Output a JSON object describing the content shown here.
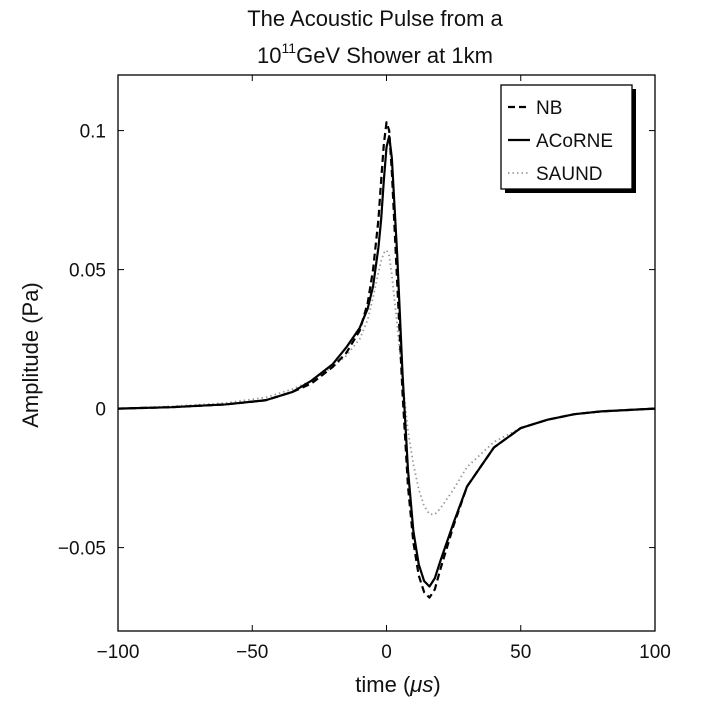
{
  "chart_data": {
    "type": "line",
    "title_line1": "The Acoustic Pulse from a",
    "title_line2_base": "10",
    "title_line2_exponent": "11",
    "title_line2_rest": "GeV Shower at 1km",
    "xlabel_prefix": "time (",
    "xlabel_unit": "μs",
    "xlabel_suffix": ")",
    "ylabel": "Amplitude (Pa)",
    "xlim": [
      -100,
      100
    ],
    "ylim": [
      -0.08,
      0.12
    ],
    "xticks": [
      -100,
      -50,
      0,
      50,
      100
    ],
    "xtick_labels": [
      "−100",
      "−50",
      "0",
      "50",
      "100"
    ],
    "yticks": [
      -0.05,
      0,
      0.05,
      0.1
    ],
    "ytick_labels": [
      "−0.05",
      "0",
      "0.05",
      "0.1"
    ],
    "grid": false,
    "legend_position": "top-right",
    "series": [
      {
        "name": "NB",
        "style": "dashed",
        "color": "#000000",
        "x": [
          -100,
          -80,
          -60,
          -45,
          -35,
          -28,
          -20,
          -15,
          -10,
          -7,
          -5,
          -3,
          -2,
          -1,
          0,
          1,
          2,
          4,
          6,
          8,
          10,
          12,
          14,
          16,
          18,
          20,
          25,
          30,
          40,
          50,
          60,
          70,
          80,
          90,
          100
        ],
        "y": [
          0,
          0.0005,
          0.0015,
          0.003,
          0.006,
          0.009,
          0.015,
          0.02,
          0.028,
          0.038,
          0.05,
          0.068,
          0.082,
          0.095,
          0.103,
          0.1,
          0.085,
          0.045,
          0.005,
          -0.028,
          -0.048,
          -0.06,
          -0.066,
          -0.068,
          -0.065,
          -0.058,
          -0.042,
          -0.028,
          -0.014,
          -0.007,
          -0.004,
          -0.002,
          -0.001,
          -0.0005,
          0
        ]
      },
      {
        "name": "ACoRNE",
        "style": "solid",
        "color": "#000000",
        "x": [
          -100,
          -80,
          -60,
          -45,
          -35,
          -28,
          -20,
          -15,
          -10,
          -7,
          -5,
          -3,
          -2,
          -1,
          0,
          1,
          2,
          4,
          6,
          8,
          10,
          12,
          14,
          16,
          18,
          20,
          25,
          30,
          40,
          50,
          60,
          70,
          80,
          90,
          100
        ],
        "y": [
          0,
          0.0005,
          0.0015,
          0.003,
          0.006,
          0.01,
          0.016,
          0.022,
          0.029,
          0.036,
          0.044,
          0.058,
          0.068,
          0.082,
          0.094,
          0.098,
          0.09,
          0.055,
          0.012,
          -0.022,
          -0.044,
          -0.056,
          -0.062,
          -0.064,
          -0.061,
          -0.055,
          -0.041,
          -0.028,
          -0.014,
          -0.007,
          -0.004,
          -0.002,
          -0.001,
          -0.0005,
          0
        ]
      },
      {
        "name": "SAUND",
        "style": "dotted",
        "color": "#9a9a9a",
        "x": [
          -100,
          -80,
          -60,
          -45,
          -35,
          -28,
          -20,
          -15,
          -10,
          -7,
          -5,
          -3,
          -2,
          -1,
          0,
          1,
          2,
          4,
          6,
          8,
          10,
          12,
          14,
          16,
          18,
          20,
          25,
          30,
          40,
          50,
          60,
          70,
          80,
          90,
          100
        ],
        "y": [
          0,
          0.0008,
          0.002,
          0.004,
          0.007,
          0.01,
          0.015,
          0.019,
          0.025,
          0.032,
          0.04,
          0.049,
          0.053,
          0.056,
          0.057,
          0.055,
          0.048,
          0.03,
          0.01,
          -0.008,
          -0.02,
          -0.029,
          -0.035,
          -0.038,
          -0.038,
          -0.036,
          -0.029,
          -0.021,
          -0.012,
          -0.007,
          -0.004,
          -0.002,
          -0.001,
          -0.0005,
          0
        ]
      }
    ]
  }
}
